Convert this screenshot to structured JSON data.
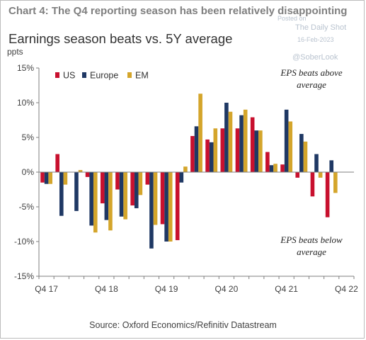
{
  "header": {
    "title": "Chart 4: The Q4 reporting season has been relatively disappointing"
  },
  "watermark": {
    "posted": "Posted on",
    "site": "The Daily Shot",
    "date": "16-Feb-2023",
    "handle": "@SoberLook"
  },
  "source": "Source: Oxford Economics/Refinitiv Datastream",
  "colors": {
    "us": "#c8102e",
    "europe": "#1f3864",
    "em": "#d4a52b"
  },
  "chart_data": {
    "type": "bar",
    "title": "Earnings season beats vs. 5Y average",
    "ylabel": "ppts",
    "ylim": [
      -15,
      15
    ],
    "yticks": [
      15,
      10,
      5,
      0,
      -5,
      -10,
      -15
    ],
    "ytick_labels": [
      "15%",
      "10%",
      "5%",
      "0%",
      "-5%",
      "-10%",
      "-15%"
    ],
    "categories": [
      "Q4 17",
      "Q1 18",
      "Q2 18",
      "Q3 18",
      "Q4 18",
      "Q1 19",
      "Q2 19",
      "Q3 19",
      "Q4 19",
      "Q1 20",
      "Q2 20",
      "Q3 20",
      "Q4 20",
      "Q1 21",
      "Q2 21",
      "Q3 21",
      "Q4 21",
      "Q1 22",
      "Q2 22",
      "Q3 22",
      "Q4 22"
    ],
    "xtick_labels": [
      {
        "index": 0,
        "label": "Q4 17"
      },
      {
        "index": 4,
        "label": "Q4 18"
      },
      {
        "index": 8,
        "label": "Q4 19"
      },
      {
        "index": 12,
        "label": "Q4 20"
      },
      {
        "index": 16,
        "label": "Q4 21"
      },
      {
        "index": 20,
        "label": "Q4 22"
      }
    ],
    "series": [
      {
        "name": "US",
        "color": "#c8102e",
        "values": [
          -1.5,
          2.6,
          0,
          -0.7,
          -4.5,
          -2.5,
          -4.8,
          -1.8,
          -7.5,
          -9.8,
          5.2,
          4.7,
          6.3,
          6.3,
          7.9,
          2.9,
          1.1,
          -0.8,
          -3.5,
          -6.5,
          null
        ]
      },
      {
        "name": "Europe",
        "color": "#1f3864",
        "values": [
          -1.7,
          -6.3,
          -5.6,
          -7.7,
          -6.9,
          -6.4,
          -5.2,
          -11.0,
          -10.0,
          -1.5,
          6.6,
          4.3,
          10.0,
          8.2,
          6.0,
          1.0,
          9.0,
          5.5,
          2.6,
          1.7,
          null
        ]
      },
      {
        "name": "EM",
        "color": "#d4a52b",
        "values": [
          -1.7,
          -1.8,
          0.3,
          -8.7,
          -8.4,
          -6.8,
          -3.3,
          -7.6,
          -10.0,
          0.8,
          11.3,
          6.3,
          8.7,
          9.0,
          6.0,
          1.2,
          7.3,
          4.4,
          -0.8,
          -3.0,
          null
        ]
      }
    ],
    "legend_position": "top-left",
    "annotations": [
      {
        "lines": [
          "EPS beats above",
          "average"
        ],
        "position": "top-right"
      },
      {
        "lines": [
          "EPS beats below",
          "average"
        ],
        "position": "bottom-right"
      }
    ],
    "grid": false
  }
}
